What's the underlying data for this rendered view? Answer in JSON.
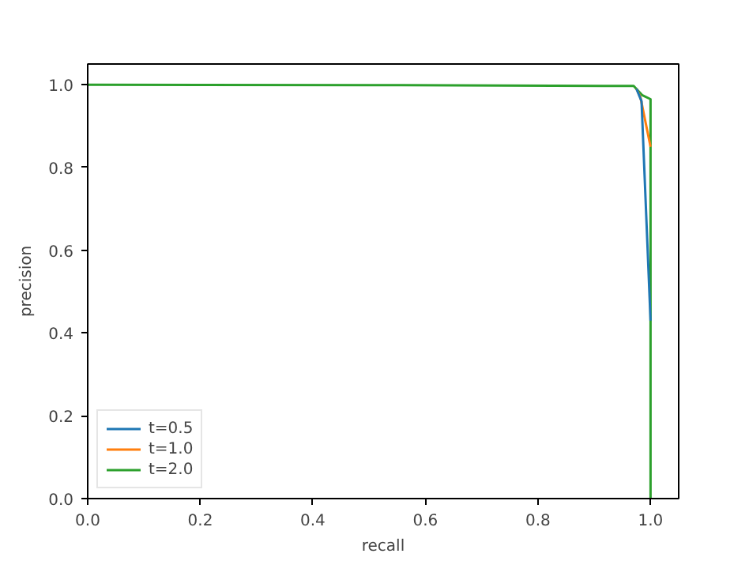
{
  "chart_data": {
    "type": "line",
    "xlabel": "recall",
    "ylabel": "precision",
    "xlim": [
      0.0,
      1.05
    ],
    "ylim": [
      0.0,
      1.05
    ],
    "xticks": [
      {
        "value": 0,
        "label": "0.0"
      },
      0.2,
      0.4,
      0.6,
      0.8,
      {
        "value": 1,
        "label": "1.0"
      }
    ],
    "yticks": [
      {
        "value": 0,
        "label": "0.0"
      },
      0.2,
      0.4,
      0.6,
      0.8,
      {
        "value": 1,
        "label": "1.0"
      }
    ],
    "grid": false,
    "legend": "bottom left",
    "series": [
      {
        "name": "t=0.5",
        "color": "#1f77b4",
        "x": [
          0.975,
          0.984,
          1.0
        ],
        "values": [
          0.99,
          0.96,
          0.43
        ]
      },
      {
        "name": "t=1.0",
        "color": "#ff7f0e",
        "x": [
          0.975,
          0.982,
          1.0
        ],
        "values": [
          0.99,
          0.97,
          0.85
        ]
      },
      {
        "name": "t=2.0",
        "color": "#2ca02c",
        "x": [
          0.0,
          0.5,
          0.97,
          0.985,
          1.0,
          1.0
        ],
        "values": [
          1.0,
          0.999,
          0.997,
          0.975,
          0.965,
          0.0
        ]
      }
    ]
  }
}
